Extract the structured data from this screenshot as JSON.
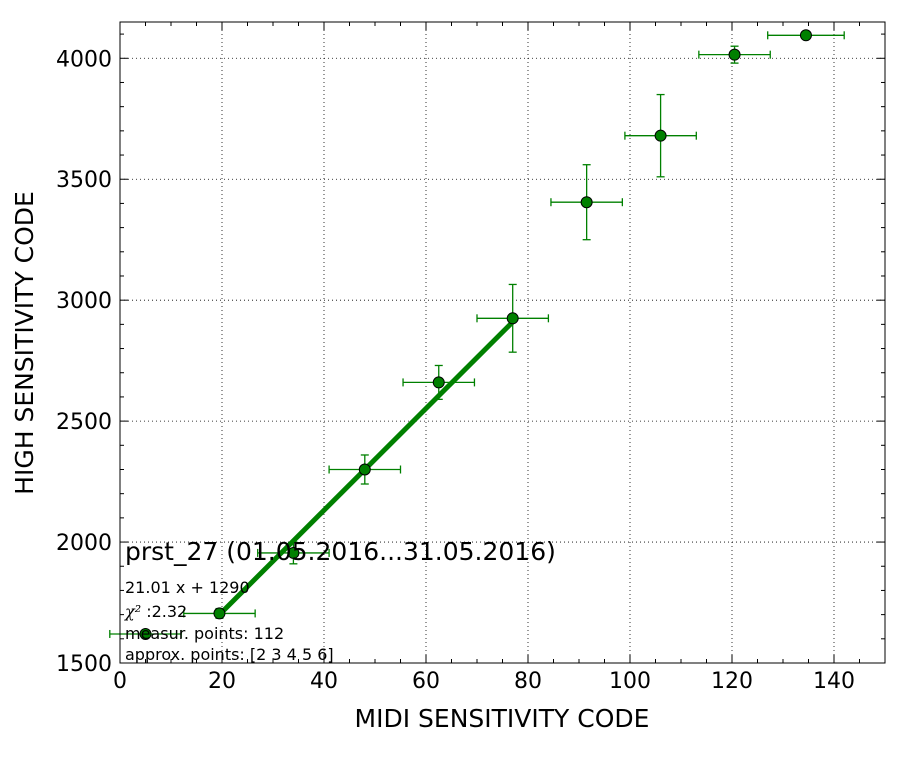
{
  "chart_data": {
    "type": "scatter",
    "xlabel": "MIDI SENSITIVITY CODE",
    "ylabel": "HIGH SENSITIVITY CODE",
    "xlim": [
      0,
      150
    ],
    "ylim": [
      1500,
      4150
    ],
    "xticks": [
      "0",
      "20",
      "40",
      "60",
      "80",
      "100",
      "120",
      "140"
    ],
    "yticks": [
      "1500",
      "2000",
      "2500",
      "3000",
      "3500",
      "4000"
    ],
    "grid": true,
    "colors": {
      "marker": "#008000",
      "errorbar": "#008000",
      "fit": "#008000"
    },
    "points": [
      {
        "x": 5,
        "y": 1620,
        "xerr": 7,
        "yerr": 0
      },
      {
        "x": 19.5,
        "y": 1705,
        "xerr": 7,
        "yerr": 20
      },
      {
        "x": 34,
        "y": 1955,
        "xerr": 7,
        "yerr": 45
      },
      {
        "x": 48,
        "y": 2300,
        "xerr": 7,
        "yerr": 60
      },
      {
        "x": 62.5,
        "y": 2660,
        "xerr": 7,
        "yerr": 70
      },
      {
        "x": 77,
        "y": 2925,
        "xerr": 7,
        "yerr": 140
      },
      {
        "x": 91.5,
        "y": 3405,
        "xerr": 7,
        "yerr": 155
      },
      {
        "x": 106,
        "y": 3680,
        "xerr": 7,
        "yerr": 170
      },
      {
        "x": 120.5,
        "y": 4015,
        "xerr": 7,
        "yerr": 35
      },
      {
        "x": 134.5,
        "y": 4095,
        "xerr": 7.5,
        "yerr": 0
      }
    ],
    "fit_line": {
      "x": [
        19.5,
        77
      ],
      "y": [
        1700,
        2910
      ]
    },
    "annotations": {
      "title": "prst_27 (01.05.2016...31.05.2016)",
      "equation": "21.01 x + 1290",
      "chi2_symbol": "χ²",
      "chi2_value": " :2.32",
      "measur_points": "measur. points: 112",
      "approx_points": "approx. points: [2 3 4 5 6]"
    }
  }
}
